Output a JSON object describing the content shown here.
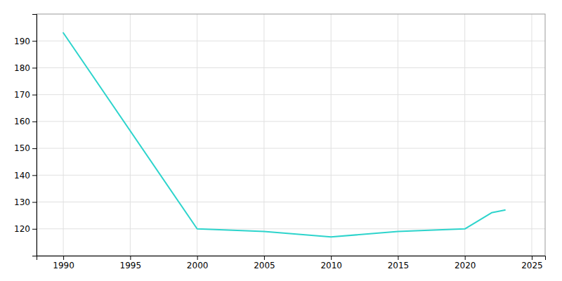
{
  "chart_data": {
    "type": "line",
    "x": [
      1990,
      2000,
      2005,
      2010,
      2015,
      2020,
      2022,
      2023
    ],
    "values": [
      193,
      120,
      119,
      117,
      119,
      120,
      126,
      127
    ],
    "color": "#2dd4cc",
    "xlim": [
      1988,
      2026
    ],
    "ylim": [
      110,
      200
    ],
    "xticks": [
      1990,
      1995,
      2000,
      2005,
      2010,
      2015,
      2020,
      2025
    ],
    "yticks": [
      120,
      130,
      140,
      150,
      160,
      170,
      180,
      190
    ],
    "grid": true
  }
}
